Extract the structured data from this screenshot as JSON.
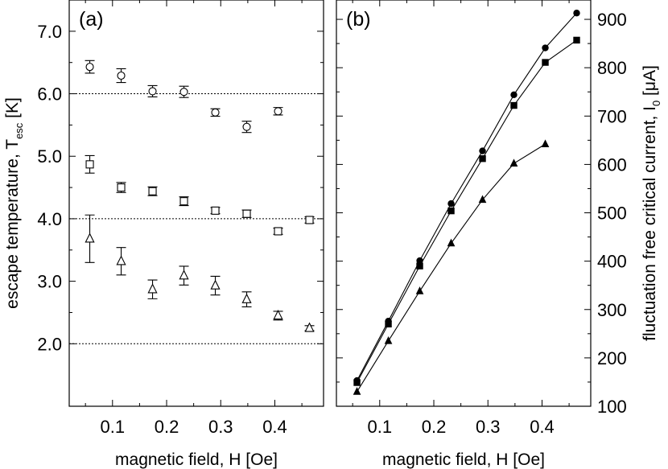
{
  "chart_data": [
    {
      "panel_label": "(a)",
      "type": "scatter",
      "xlabel": "magnetic field, H [Oe]",
      "ylabel_main": "escape temperature, T",
      "ylabel_sub": "esc",
      "ylabel_unit": " [K]",
      "xlim": [
        0.02,
        0.49
      ],
      "ylim": [
        1.0,
        7.5
      ],
      "xticks": [
        "0.1",
        "0.2",
        "0.3",
        "0.4"
      ],
      "yticks": [
        "2.0",
        "3.0",
        "4.0",
        "5.0",
        "6.0",
        "7.0"
      ],
      "reference_lines": [
        2.0,
        4.0,
        6.0
      ],
      "series": [
        {
          "name": "circles",
          "marker": "circle",
          "x": [
            0.058,
            0.116,
            0.174,
            0.232,
            0.29,
            0.348,
            0.406
          ],
          "y": [
            6.43,
            6.29,
            6.04,
            6.03,
            5.7,
            5.47,
            5.72
          ],
          "err": [
            0.1,
            0.11,
            0.09,
            0.09,
            0.06,
            0.09,
            0.06
          ]
        },
        {
          "name": "squares",
          "marker": "square",
          "x": [
            0.058,
            0.116,
            0.174,
            0.232,
            0.29,
            0.348,
            0.406,
            0.464
          ],
          "y": [
            4.87,
            4.5,
            4.44,
            4.28,
            4.13,
            4.08,
            3.8,
            3.98
          ],
          "err": [
            0.14,
            0.08,
            0.07,
            0.07,
            0.05,
            0.06,
            0.05,
            0.05
          ]
        },
        {
          "name": "triangles",
          "marker": "triangle",
          "x": [
            0.058,
            0.116,
            0.174,
            0.232,
            0.29,
            0.348,
            0.406,
            0.464
          ],
          "y": [
            3.68,
            3.32,
            2.87,
            3.09,
            2.93,
            2.71,
            2.45,
            2.25
          ],
          "err": [
            0.38,
            0.22,
            0.15,
            0.15,
            0.15,
            0.12,
            0.07,
            0.04
          ]
        }
      ]
    },
    {
      "panel_label": "(b)",
      "type": "line",
      "xlabel": "magnetic field, H [Oe]",
      "ylabel_main": "fluctuation free critical current, I",
      "ylabel_sub": "0",
      "ylabel_unit": " [μA]",
      "xlim": [
        0.02,
        0.49
      ],
      "ylim": [
        100,
        940
      ],
      "xticks": [
        "0.1",
        "0.2",
        "0.3",
        "0.4"
      ],
      "yticks": [
        "100",
        "200",
        "300",
        "400",
        "500",
        "600",
        "700",
        "800",
        "900"
      ],
      "series": [
        {
          "name": "circles",
          "marker": "circle",
          "x": [
            0.058,
            0.116,
            0.174,
            0.232,
            0.29,
            0.348,
            0.406,
            0.464
          ],
          "y": [
            153,
            276,
            401,
            519,
            628,
            744,
            841,
            913
          ]
        },
        {
          "name": "squares",
          "marker": "square",
          "x": [
            0.058,
            0.116,
            0.174,
            0.232,
            0.29,
            0.348,
            0.406,
            0.464
          ],
          "y": [
            149,
            270,
            390,
            504,
            612,
            722,
            811,
            857
          ]
        },
        {
          "name": "triangles",
          "marker": "triangle",
          "x": [
            0.058,
            0.116,
            0.174,
            0.232,
            0.29,
            0.348,
            0.406
          ],
          "y": [
            130,
            235,
            338,
            437,
            527,
            602,
            642
          ]
        }
      ]
    }
  ]
}
